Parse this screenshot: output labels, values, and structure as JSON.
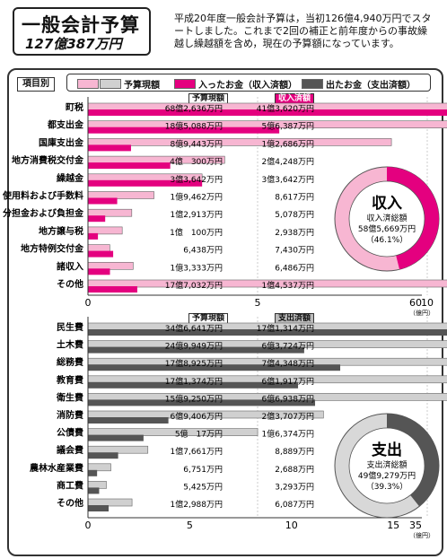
{
  "title": "一般会計予算",
  "total_amount": "127億387万円",
  "intro_text": "平成20年度一般会計予算は，当初126億4,940万円でスタートしました。これまで2回の補正と前年度からの事故繰越し繰越額を含め，現在の予算額になっています。",
  "legend": {
    "category_label": "項目別",
    "budget": "予算現額",
    "income": "入ったお金（収入済額）",
    "expense": "出たお金（支出済額）"
  },
  "colors": {
    "budget_revenue": "#f7b6d2",
    "revenue": "#e4007f",
    "budget_expense": "#d0d0d0",
    "expense": "#555555",
    "revenue_ring_light": "#f7b6d2",
    "expense_ring_light": "#d8d8d8"
  },
  "chart_data": [
    {
      "type": "bar",
      "col_headers": [
        "予算現額",
        "収入済額"
      ],
      "categories": [
        "町税",
        "都支出金",
        "国庫支出金",
        "地方消費税交付金",
        "繰越金",
        "使用料および手数料",
        "分担金および負担金",
        "地方譲与税",
        "地方特例交付金",
        "諸収入",
        "その他"
      ],
      "series": [
        {
          "name": "予算現額",
          "values_text": [
            "68億2,636万円",
            "18億5,088万円",
            "8億9,443万円",
            "4億　300万円",
            "3億3,642万円",
            "1億9,462万円",
            "1億2,913万円",
            "1億　100万円",
            "6,438万円",
            "1億3,333万円",
            "17億7,032万円"
          ],
          "values": [
            68.2636,
            18.5088,
            8.9443,
            4.03,
            3.3642,
            1.9462,
            1.2913,
            1.01,
            0.6438,
            1.3333,
            17.7032
          ]
        },
        {
          "name": "収入済額",
          "values_text": [
            "41億3,620万円",
            "5億6,387万円",
            "1億2,686万円",
            "2億4,248万円",
            "3億3,642万円",
            "8,617万円",
            "5,078万円",
            "2,938万円",
            "7,430万円",
            "6,486万円",
            "1億4,537万円"
          ],
          "values": [
            41.362,
            5.6387,
            1.2686,
            2.4248,
            3.3642,
            0.8617,
            0.5078,
            0.2938,
            0.743,
            0.6486,
            1.4537
          ]
        }
      ],
      "axis_ticks": [
        "0",
        "5",
        "10",
        "15",
        "60"
      ],
      "unit": "（億円）",
      "pie": {
        "label": "収入",
        "sublabel": "収入済総額",
        "amount": "58億5,669万円",
        "percent_text": "（46.1%）",
        "percent": 46.1
      }
    },
    {
      "type": "bar",
      "col_headers": [
        "予算現額",
        "支出済額"
      ],
      "categories": [
        "民生費",
        "土木費",
        "総務費",
        "教育費",
        "衛生費",
        "消防費",
        "公債費",
        "議会費",
        "農林水産業費",
        "商工費",
        "その他"
      ],
      "series": [
        {
          "name": "予算現額",
          "values_text": [
            "34億6,641万円",
            "24億9,949万円",
            "17億8,925万円",
            "17億1,374万円",
            "15億9,250万円",
            "6億9,406万円",
            "5億　17万円",
            "1億7,661万円",
            "6,751万円",
            "5,425万円",
            "1億2,988万円"
          ],
          "values": [
            34.6641,
            24.9949,
            17.8925,
            17.1374,
            15.925,
            6.9406,
            5.0017,
            1.7661,
            0.6751,
            0.5425,
            1.2988
          ]
        },
        {
          "name": "支出済額",
          "values_text": [
            "17億1,314万円",
            "6億3,724万円",
            "7億4,348万円",
            "6億1,917万円",
            "6億6,938万円",
            "2億3,707万円",
            "1億6,374万円",
            "8,889万円",
            "2,688万円",
            "3,293万円",
            "6,087万円"
          ],
          "values": [
            17.1314,
            6.3724,
            7.4348,
            6.1917,
            6.6938,
            2.3707,
            1.6374,
            0.8889,
            0.2688,
            0.3293,
            0.6087
          ]
        }
      ],
      "axis_ticks": [
        "0",
        "5",
        "10",
        "15",
        "20",
        "25",
        "35"
      ],
      "unit": "（億円）",
      "pie": {
        "label": "支出",
        "sublabel": "支出済総額",
        "amount": "49億9,279万円",
        "percent_text": "（39.3%）",
        "percent": 39.3
      }
    }
  ]
}
